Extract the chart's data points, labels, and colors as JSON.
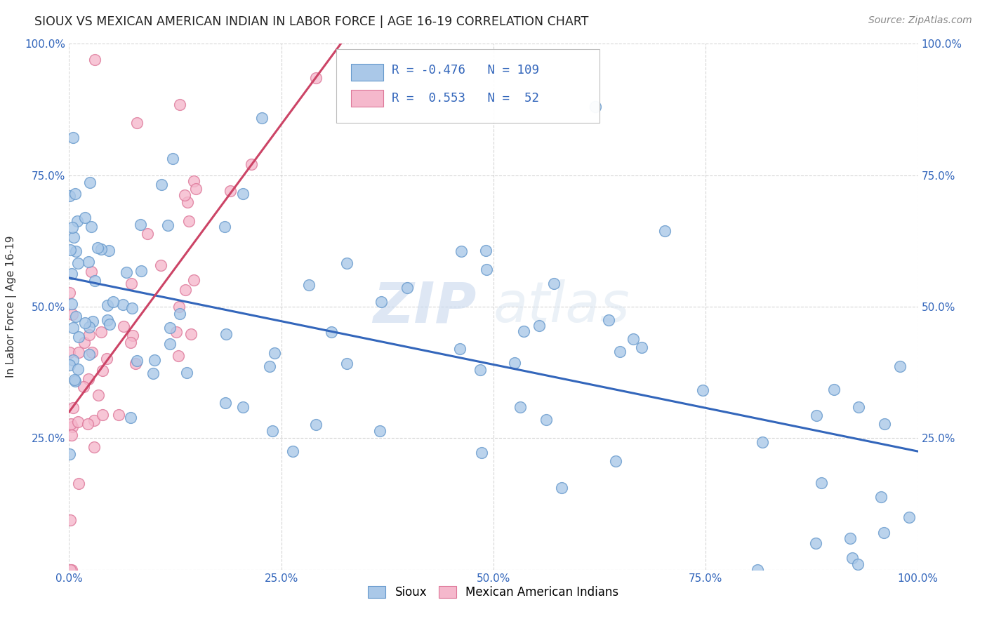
{
  "title": "SIOUX VS MEXICAN AMERICAN INDIAN IN LABOR FORCE | AGE 16-19 CORRELATION CHART",
  "source": "Source: ZipAtlas.com",
  "ylabel": "In Labor Force | Age 16-19",
  "xlim": [
    0,
    1
  ],
  "ylim": [
    0,
    1
  ],
  "xticklabels": [
    "0.0%",
    "25.0%",
    "50.0%",
    "75.0%",
    "100.0%"
  ],
  "yticklabels_left": [
    "",
    "25.0%",
    "50.0%",
    "75.0%",
    "100.0%"
  ],
  "yticklabels_right": [
    "25.0%",
    "50.0%",
    "75.0%",
    "100.0%"
  ],
  "sioux_color": "#aac8e8",
  "sioux_edge_color": "#6699cc",
  "mexican_color": "#f5b8cc",
  "mexican_edge_color": "#dd7799",
  "blue_line_color": "#3366bb",
  "pink_line_color": "#cc4466",
  "legend_R_sioux": "-0.476",
  "legend_N_sioux": "109",
  "legend_R_mexican": "0.553",
  "legend_N_mexican": "52",
  "watermark_zip": "ZIP",
  "watermark_atlas": "atlas",
  "blue_line_x0": 0.0,
  "blue_line_y0": 0.555,
  "blue_line_x1": 1.0,
  "blue_line_y1": 0.225,
  "pink_line_x0": 0.0,
  "pink_line_y0": 0.3,
  "pink_line_x1": 0.32,
  "pink_line_y1": 1.0
}
